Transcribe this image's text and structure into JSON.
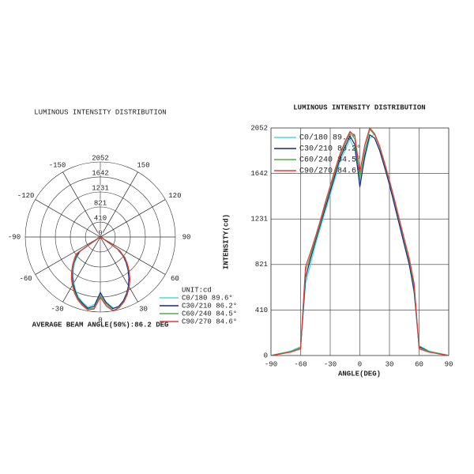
{
  "chart_data": [
    {
      "type": "polar",
      "title": "LUMINOUS INTENSITY DISTRIBUTION",
      "x": [
        -90,
        -80,
        -70,
        -60,
        -55,
        -50,
        -45,
        -40,
        -35,
        -30,
        -25,
        -20,
        -15,
        -10,
        -5,
        0,
        5,
        10,
        15,
        20,
        25,
        30,
        35,
        40,
        45,
        50,
        55,
        60,
        70,
        80,
        90
      ],
      "rlim": [
        0,
        2052
      ],
      "rticks": [
        0,
        410,
        821,
        1231,
        1642,
        2052
      ],
      "angle_ticks": [
        -150,
        -120,
        -90,
        -60,
        -30,
        0,
        30,
        60,
        90,
        120,
        150
      ],
      "legend_title": "UNIT:cd",
      "note": "AVERAGE BEAM ANGLE(50%):86.2 DEG",
      "series": [
        {
          "name": "C0/180 89.6°",
          "color": "#4fd6e0",
          "values": [
            0,
            20,
            40,
            80,
            650,
            820,
            1000,
            1150,
            1300,
            1450,
            1600,
            1750,
            1850,
            1950,
            1850,
            1550,
            1780,
            1960,
            2000,
            1880,
            1720,
            1560,
            1380,
            1200,
            1020,
            840,
            560,
            90,
            40,
            20,
            0
          ]
        },
        {
          "name": "C30/210 86.2°",
          "color": "#1a237e",
          "values": [
            0,
            15,
            35,
            70,
            700,
            870,
            1030,
            1180,
            1330,
            1480,
            1630,
            1780,
            1880,
            1980,
            1900,
            1520,
            1800,
            1990,
            1960,
            1850,
            1700,
            1540,
            1360,
            1180,
            1000,
            820,
            580,
            80,
            35,
            15,
            0
          ]
        },
        {
          "name": "C60/240 84.5°",
          "color": "#4caf50",
          "values": [
            0,
            20,
            35,
            70,
            760,
            900,
            1050,
            1200,
            1360,
            1510,
            1660,
            1800,
            1910,
            2010,
            1950,
            1600,
            1850,
            2040,
            1990,
            1880,
            1730,
            1570,
            1400,
            1220,
            1040,
            860,
            620,
            70,
            35,
            20,
            0
          ]
        },
        {
          "name": "C90/270 84.6°",
          "color": "#e53935",
          "values": [
            0,
            15,
            30,
            60,
            800,
            930,
            1070,
            1220,
            1380,
            1530,
            1680,
            1820,
            1930,
            2020,
            1980,
            1650,
            1900,
            2052,
            2000,
            1890,
            1740,
            1580,
            1410,
            1230,
            1050,
            880,
            650,
            60,
            30,
            15,
            0
          ]
        }
      ]
    },
    {
      "type": "line",
      "title": "LUMINOUS INTENSITY DISTRIBUTION",
      "x_label": "ANGLE(DEG)",
      "y_label": "INTENSITY(cd)",
      "x": [
        -90,
        -80,
        -70,
        -60,
        -55,
        -50,
        -45,
        -40,
        -35,
        -30,
        -25,
        -20,
        -15,
        -10,
        -5,
        0,
        5,
        10,
        15,
        20,
        25,
        30,
        35,
        40,
        45,
        50,
        55,
        60,
        70,
        80,
        90
      ],
      "xlim": [
        -90,
        90
      ],
      "xticks": [
        -90,
        -60,
        -30,
        0,
        30,
        60,
        90
      ],
      "ylim": [
        0,
        2052
      ],
      "yticks": [
        0,
        410,
        821,
        1231,
        1642,
        2052
      ],
      "grid": true,
      "series": [
        {
          "name": "C0/180 89.6°",
          "color": "#4fd6e0",
          "values": [
            0,
            20,
            40,
            80,
            650,
            820,
            1000,
            1150,
            1300,
            1450,
            1600,
            1750,
            1850,
            1950,
            1850,
            1550,
            1780,
            1960,
            2000,
            1880,
            1720,
            1560,
            1380,
            1200,
            1020,
            840,
            560,
            90,
            40,
            20,
            0
          ]
        },
        {
          "name": "C30/210 86.2°",
          "color": "#1a237e",
          "values": [
            0,
            15,
            35,
            70,
            700,
            870,
            1030,
            1180,
            1330,
            1480,
            1630,
            1780,
            1880,
            1980,
            1900,
            1520,
            1800,
            1990,
            1960,
            1850,
            1700,
            1540,
            1360,
            1180,
            1000,
            820,
            580,
            80,
            35,
            15,
            0
          ]
        },
        {
          "name": "C60/240 84.5°",
          "color": "#4caf50",
          "values": [
            0,
            20,
            35,
            70,
            760,
            900,
            1050,
            1200,
            1360,
            1510,
            1660,
            1800,
            1910,
            2010,
            1950,
            1600,
            1850,
            2040,
            1990,
            1880,
            1730,
            1570,
            1400,
            1220,
            1040,
            860,
            620,
            70,
            35,
            20,
            0
          ]
        },
        {
          "name": "C90/270 84.6°",
          "color": "#e53935",
          "values": [
            0,
            15,
            30,
            60,
            800,
            930,
            1070,
            1220,
            1380,
            1530,
            1680,
            1820,
            1930,
            2020,
            1980,
            1650,
            1900,
            2052,
            2000,
            1890,
            1740,
            1580,
            1410,
            1230,
            1050,
            880,
            650,
            60,
            30,
            15,
            0
          ]
        }
      ]
    }
  ]
}
